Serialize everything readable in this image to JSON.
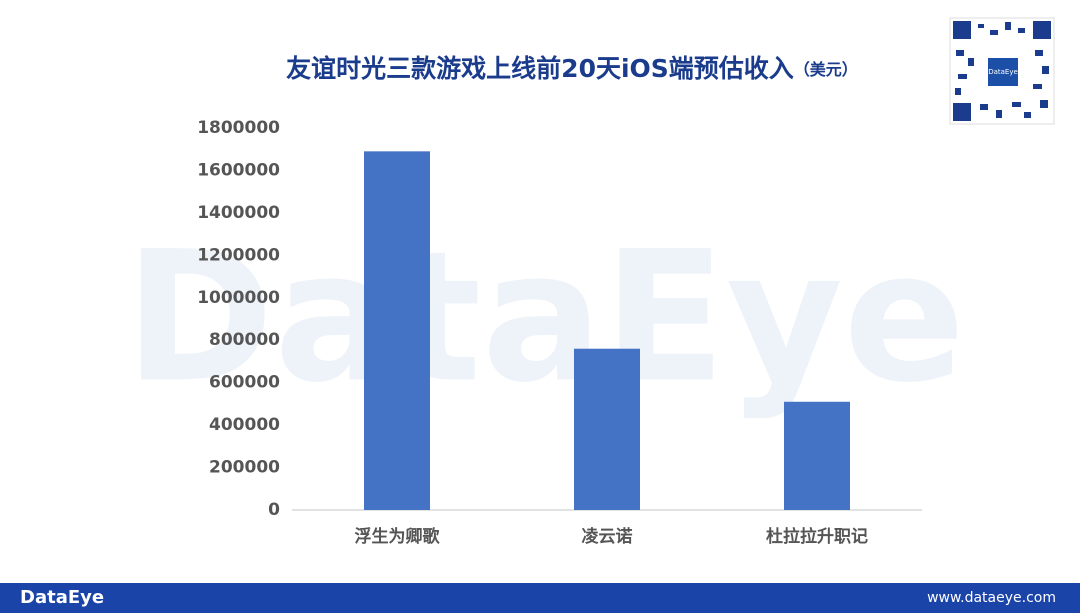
{
  "chart_data": {
    "type": "bar",
    "title": "友谊时光三款游戏上线前20天iOS端预估收入",
    "title_unit": "（美元）",
    "categories": [
      "浮生为卿歌",
      "凌云诺",
      "杜拉拉升职记"
    ],
    "values": [
      1690000,
      760000,
      510000
    ],
    "color": "#4472c4",
    "ylim": [
      0,
      1800000
    ],
    "yticks": [
      0,
      200000,
      400000,
      600000,
      800000,
      1000000,
      1200000,
      1400000,
      1600000,
      1800000
    ],
    "grid": false
  },
  "watermark": "DataEye",
  "footer": {
    "brand": "DataEye",
    "website": "www.dataeye.com"
  },
  "qr_label": "DataEye"
}
